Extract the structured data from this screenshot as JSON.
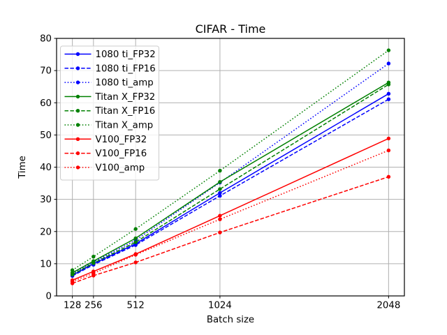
{
  "figure": {
    "title_bar": "CIFAR - Time"
  },
  "chart_data": {
    "type": "line",
    "title": "CIFAR - Time",
    "xlabel": "Batch size",
    "ylabel": "Time",
    "x": [
      128,
      256,
      512,
      1024,
      2048
    ],
    "xticks": [
      128,
      256,
      512,
      1024,
      2048
    ],
    "yticks": [
      0,
      10,
      20,
      30,
      40,
      50,
      60,
      70,
      80
    ],
    "xlim": [
      32,
      2144
    ],
    "ylim": [
      0,
      80
    ],
    "grid": true,
    "legend_position": "upper left",
    "series": [
      {
        "name": "1080 ti_FP32",
        "color": "#0000ff",
        "style": "solid",
        "marker": "circle",
        "values": [
          6.4,
          10.0,
          16.2,
          32.0,
          62.8
        ]
      },
      {
        "name": "1080 ti_FP16",
        "color": "#0000ff",
        "style": "dashed",
        "marker": "circle",
        "values": [
          6.2,
          9.7,
          15.8,
          31.1,
          61.1
        ]
      },
      {
        "name": "1080 ti_amp",
        "color": "#0000ff",
        "style": "dotted",
        "marker": "circle",
        "values": [
          6.8,
          10.5,
          17.3,
          35.2,
          72.2
        ]
      },
      {
        "name": "Titan X_FP32",
        "color": "#008000",
        "style": "solid",
        "marker": "circle",
        "values": [
          7.2,
          10.8,
          17.9,
          35.4,
          66.3
        ]
      },
      {
        "name": "Titan X_FP16",
        "color": "#008000",
        "style": "dashed",
        "marker": "circle",
        "values": [
          6.6,
          10.2,
          16.7,
          33.2,
          65.7
        ]
      },
      {
        "name": "Titan X_amp",
        "color": "#008000",
        "style": "dotted",
        "marker": "circle",
        "values": [
          8.0,
          12.2,
          20.8,
          38.9,
          76.3
        ]
      },
      {
        "name": "V100_FP32",
        "color": "#ff0000",
        "style": "solid",
        "marker": "circle",
        "values": [
          4.9,
          7.6,
          13.0,
          24.9,
          48.9
        ]
      },
      {
        "name": "V100_FP16",
        "color": "#ff0000",
        "style": "dashed",
        "marker": "circle",
        "values": [
          3.9,
          6.3,
          10.4,
          19.7,
          37.0
        ]
      },
      {
        "name": "V100_amp",
        "color": "#ff0000",
        "style": "dotted",
        "marker": "circle",
        "values": [
          4.5,
          7.0,
          12.8,
          23.8,
          45.2
        ]
      }
    ],
    "colors": {
      "background": "#ffffff",
      "grid": "#b0b0b0",
      "spine": "#000000",
      "text": "#000000",
      "legend_edge": "#cccccc",
      "legend_face": "#ffffff"
    }
  }
}
